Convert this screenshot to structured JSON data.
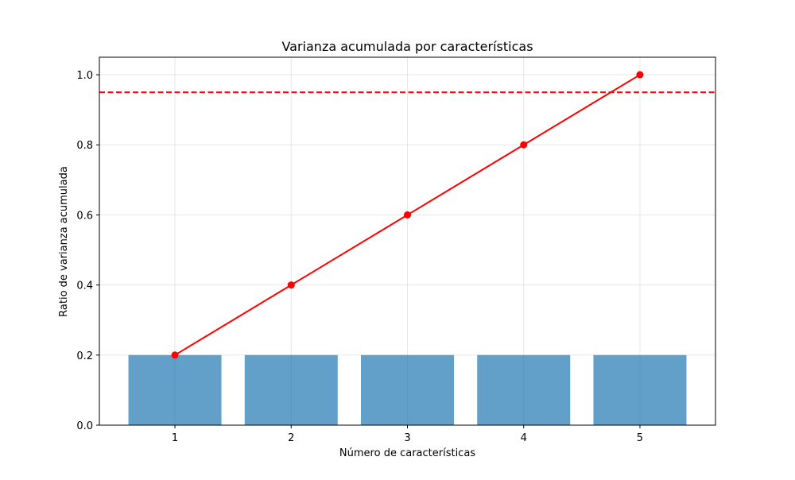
{
  "chart_data": {
    "type": "bar",
    "title": "Varianza acumulada por características",
    "xlabel": "Número de características",
    "ylabel": "Ratio de varianza acumulada",
    "categories": [
      1,
      2,
      3,
      4,
      5
    ],
    "xlim": [
      0.35,
      5.65
    ],
    "ylim": [
      0,
      1.05
    ],
    "xticks": [
      "1",
      "2",
      "3",
      "4",
      "5"
    ],
    "yticks": [
      "0.0",
      "0.2",
      "0.4",
      "0.6",
      "0.8",
      "1.0"
    ],
    "grid": true,
    "series": [
      {
        "kind": "bar",
        "values": [
          0.2,
          0.2,
          0.2,
          0.2,
          0.2
        ],
        "color": "#1f77b4"
      },
      {
        "kind": "line",
        "values": [
          0.2,
          0.4,
          0.6,
          0.8,
          1.0
        ],
        "color": "#ff0000",
        "marker": "circle"
      }
    ],
    "reference_lines": [
      {
        "orientation": "horizontal",
        "y": 0.95,
        "color": "#ff0000",
        "style": "dashed"
      }
    ]
  }
}
